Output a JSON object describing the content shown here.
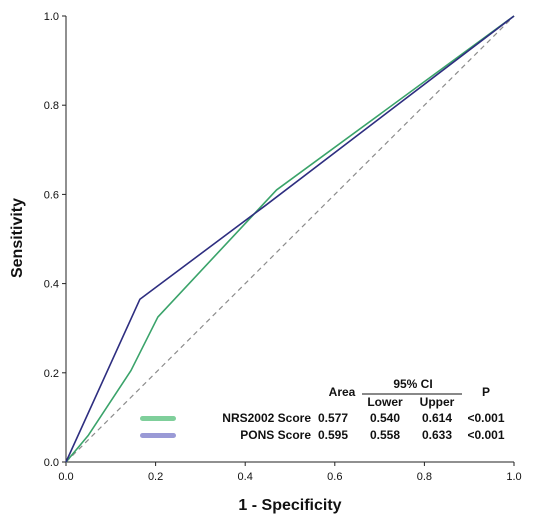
{
  "chart_data": {
    "type": "line",
    "title": "",
    "xlabel": "1 - Specificity",
    "ylabel": "Sensitivity",
    "xlim": [
      0,
      1
    ],
    "ylim": [
      0,
      1
    ],
    "x_ticks": [
      "0.0",
      "0.2",
      "0.4",
      "0.6",
      "0.8",
      "1.0"
    ],
    "y_ticks": [
      "0.0",
      "0.2",
      "0.4",
      "0.6",
      "0.8",
      "1.0"
    ],
    "reference_line": {
      "x": [
        0,
        1
      ],
      "y": [
        0,
        1
      ],
      "style": "dashed",
      "color": "#8c8c8c"
    },
    "series": [
      {
        "name": "NRS2002 Score",
        "color": "#3aa36a",
        "x": [
          0,
          0.05,
          0.145,
          0.205,
          0.47,
          1.0
        ],
        "y": [
          0,
          0.06,
          0.205,
          0.325,
          0.61,
          1.0
        ]
      },
      {
        "name": "PONS Score",
        "color": "#2e2e80",
        "x": [
          0,
          0.165,
          0.445,
          1.0
        ],
        "y": [
          0,
          0.365,
          0.575,
          1.0
        ]
      }
    ],
    "legend": {
      "placement": "bottom-right",
      "swatch_colors": [
        "#7fcf9b",
        "#9a9ad6"
      ],
      "headers": {
        "area": "Area",
        "ci": "95% CI",
        "lower": "Lower",
        "upper": "Upper",
        "p": "P"
      },
      "rows": [
        {
          "label": "NRS2002 Score",
          "area": "0.577",
          "lower": "0.540",
          "upper": "0.614",
          "p": "<0.001"
        },
        {
          "label": "PONS Score",
          "area": "0.595",
          "lower": "0.558",
          "upper": "0.633",
          "p": "<0.001"
        }
      ]
    }
  }
}
